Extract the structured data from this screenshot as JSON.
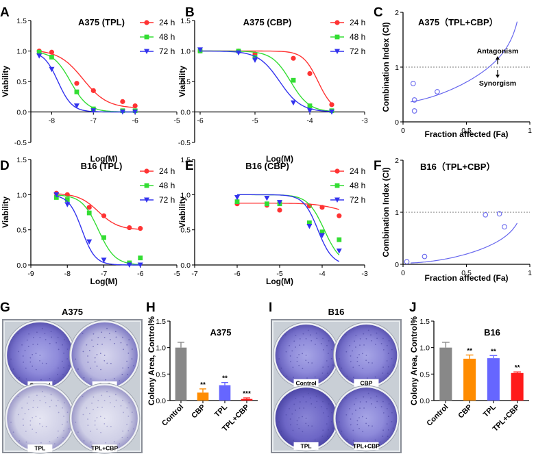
{
  "panel_labels": [
    "A",
    "B",
    "C",
    "D",
    "E",
    "F",
    "G",
    "H",
    "I",
    "J"
  ],
  "colors": {
    "h24": "#ff3333",
    "h48": "#33dd33",
    "h72": "#3333ee",
    "ci": "#6666ee",
    "control": "#888888",
    "cbp": "#ff8c00",
    "tpl": "#6666ff",
    "combo": "#ff1a1a"
  },
  "chart_data": [
    {
      "id": "A",
      "type": "line",
      "title": "A375 (TPL)",
      "xlabel": "Log(M)",
      "ylabel": "Viability",
      "xlim": [
        -8.5,
        -5
      ],
      "ylim": [
        -0.5,
        1.5
      ],
      "xticks": [
        "-8",
        "-7",
        "-6",
        "-5"
      ],
      "yticks": [
        "-0.5",
        "0.0",
        "0.5",
        "1.0",
        "1.5"
      ],
      "series": [
        {
          "name": "24 h",
          "marker": "circle",
          "x": [
            -8.3,
            -8.0,
            -7.4,
            -7.0,
            -6.3,
            -6.0
          ],
          "y": [
            1.0,
            0.98,
            0.47,
            0.35,
            0.17,
            0.1
          ],
          "fit": [
            -7.2,
            0.95
          ]
        },
        {
          "name": "48 h",
          "marker": "square",
          "x": [
            -8.3,
            -8.0,
            -7.4,
            -7.0,
            -6.3,
            -6.0
          ],
          "y": [
            0.98,
            0.9,
            0.33,
            0.05,
            0.02,
            0.02
          ],
          "fit": [
            -7.55,
            1.3
          ]
        },
        {
          "name": "72 h",
          "marker": "triangle",
          "x": [
            -8.3,
            -8.0,
            -7.4,
            -7.0,
            -6.3,
            -6.0
          ],
          "y": [
            0.92,
            0.7,
            0.1,
            0.02,
            0.0,
            0.0
          ],
          "fit": [
            -7.85,
            1.6
          ]
        }
      ]
    },
    {
      "id": "B",
      "type": "line",
      "title": "A375 (CBP)",
      "xlabel": "Log(M)",
      "ylabel": "Viability",
      "xlim": [
        -6.1,
        -3
      ],
      "ylim": [
        -0.5,
        1.5
      ],
      "xticks": [
        "-6",
        "-5",
        "-4",
        "-3"
      ],
      "yticks": [
        "-0.5",
        "0.0",
        "0.5",
        "1.0",
        "1.5"
      ],
      "series": [
        {
          "name": "24 h",
          "marker": "circle",
          "x": [
            -6.0,
            -5.3,
            -5.0,
            -4.3,
            -4.0,
            -3.6
          ],
          "y": [
            1.0,
            1.0,
            0.95,
            0.88,
            0.63,
            0.12
          ],
          "fit": [
            -3.85,
            2.0
          ]
        },
        {
          "name": "48 h",
          "marker": "square",
          "x": [
            -6.0,
            -5.3,
            -5.0,
            -4.3,
            -4.0,
            -3.6
          ],
          "y": [
            1.0,
            1.0,
            0.9,
            0.52,
            0.1,
            0.02
          ],
          "fit": [
            -4.35,
            1.6
          ]
        },
        {
          "name": "72 h",
          "marker": "triangle",
          "x": [
            -6.0,
            -5.3,
            -5.0,
            -4.3,
            -4.0,
            -3.6
          ],
          "y": [
            1.02,
            0.97,
            0.85,
            0.15,
            0.02,
            0.0
          ],
          "fit": [
            -4.55,
            1.4
          ]
        }
      ]
    },
    {
      "id": "C",
      "type": "scatter",
      "title": "A375（TPL+CBP）",
      "xlabel": "Fraction affected (Fa)",
      "ylabel": "Combination Index (CI)",
      "xlim": [
        0,
        1
      ],
      "ylim": [
        0,
        2
      ],
      "xticks": [
        "0",
        "0.5",
        "1"
      ],
      "yticks": [
        "0",
        "1",
        "2"
      ],
      "points": {
        "x": [
          0.08,
          0.09,
          0.09,
          0.27
        ],
        "y": [
          0.7,
          0.4,
          0.2,
          0.55
        ]
      },
      "reference_line": 1,
      "annotations": [
        "Antagonism",
        "Synorgism"
      ]
    },
    {
      "id": "D",
      "type": "line",
      "title": "B16 (TPL)",
      "xlabel": "Log(M)",
      "ylabel": "Viability",
      "xlim": [
        -9,
        -5
      ],
      "ylim": [
        0,
        1.5
      ],
      "xticks": [
        "-9",
        "-8",
        "-7",
        "-6",
        "-5"
      ],
      "yticks": [
        "0.0",
        "0.5",
        "1.0",
        "1.5"
      ],
      "series": [
        {
          "name": "24 h",
          "marker": "circle",
          "x": [
            -8.3,
            -8.0,
            -7.4,
            -7.0,
            -6.3,
            -6.0
          ],
          "y": [
            1.02,
            1.0,
            0.82,
            0.7,
            0.53,
            0.52
          ],
          "fit": [
            -7.2,
            1.0
          ]
        },
        {
          "name": "48 h",
          "marker": "square",
          "x": [
            -8.3,
            -8.0,
            -7.4,
            -7.0,
            -6.3,
            -6.0
          ],
          "y": [
            0.96,
            0.93,
            0.74,
            0.39,
            0.03,
            0.1
          ],
          "fit": [
            -7.15,
            1.2
          ]
        },
        {
          "name": "72 h",
          "marker": "triangle",
          "x": [
            -8.3,
            -8.0,
            -7.4,
            -7.0,
            -6.3,
            -6.0
          ],
          "y": [
            1.0,
            0.86,
            0.33,
            0.07,
            0.0,
            0.0
          ],
          "fit": [
            -7.6,
            1.5
          ]
        }
      ]
    },
    {
      "id": "E",
      "type": "line",
      "title": "B16 (CBP)",
      "xlabel": "Log(M)",
      "ylabel": "Viability",
      "xlim": [
        -7,
        -3
      ],
      "ylim": [
        0,
        1.5
      ],
      "xticks": [
        "-7",
        "-6",
        "-5",
        "-4",
        "-3"
      ],
      "yticks": [
        "0.0",
        "0.5",
        "1.0",
        "1.5"
      ],
      "series": [
        {
          "name": "24 h",
          "marker": "circle",
          "x": [
            -6.0,
            -5.3,
            -5.0,
            -4.3,
            -4.0,
            -3.6
          ],
          "y": [
            0.87,
            0.85,
            0.78,
            0.84,
            0.82,
            0.7
          ],
          "fit": [
            -3.3,
            1.5
          ]
        },
        {
          "name": "48 h",
          "marker": "square",
          "x": [
            -6.0,
            -5.3,
            -5.0,
            -4.3,
            -4.0,
            -3.6
          ],
          "y": [
            0.9,
            0.87,
            0.87,
            0.6,
            0.47,
            0.36
          ],
          "fit": [
            -3.95,
            1.4
          ]
        },
        {
          "name": "72 h",
          "marker": "triangle",
          "x": [
            -6.0,
            -5.3,
            -5.0,
            -4.3,
            -4.0,
            -3.6
          ],
          "y": [
            0.96,
            0.95,
            0.89,
            0.55,
            0.42,
            0.2
          ],
          "fit": [
            -4.1,
            1.6
          ]
        }
      ]
    },
    {
      "id": "F",
      "type": "scatter",
      "title": "B16（TPL+CBP）",
      "xlabel": "Fraction affected (Fa)",
      "ylabel": "Combination Index (CI)",
      "xlim": [
        0,
        1
      ],
      "ylim": [
        0,
        2
      ],
      "xticks": [
        "0",
        "0.5",
        "1"
      ],
      "yticks": [
        "0",
        "1",
        "2"
      ],
      "points": {
        "x": [
          0.03,
          0.17,
          0.65,
          0.76,
          0.8
        ],
        "y": [
          0.05,
          0.15,
          0.95,
          0.97,
          0.72
        ]
      },
      "reference_line": 1
    },
    {
      "id": "H",
      "type": "bar",
      "title": "A375",
      "ylabel": "Colony Area, Control%",
      "categories": [
        "Control",
        "CBP",
        "TPL",
        "TPL+CBP"
      ],
      "values": [
        1.0,
        0.15,
        0.29,
        0.03
      ],
      "errors": [
        0.1,
        0.07,
        0.05,
        0.02
      ],
      "significance": [
        "",
        "**",
        "**",
        "***"
      ],
      "ylim": [
        0,
        1.5
      ],
      "yticks": [
        "0.0",
        "0.5",
        "1.0",
        "1.5"
      ]
    },
    {
      "id": "J",
      "type": "bar",
      "title": "B16",
      "ylabel": "Colony Area, Control%",
      "categories": [
        "Control",
        "CBP",
        "TPL",
        "TPL+CBP"
      ],
      "values": [
        1.0,
        0.79,
        0.8,
        0.52
      ],
      "errors": [
        0.1,
        0.07,
        0.05,
        0.02
      ],
      "significance": [
        "",
        "**",
        "**",
        "**"
      ],
      "ylim": [
        0,
        1.5
      ],
      "yticks": [
        "0.0",
        "0.5",
        "1.0",
        "1.5"
      ]
    }
  ],
  "plates": [
    {
      "id": "G",
      "title": "A375",
      "wells": [
        "Control",
        "CBP",
        "TPL",
        "TPL+CBP"
      ]
    },
    {
      "id": "I",
      "title": "B16",
      "wells": [
        "Control",
        "CBP",
        "TPL",
        "TPL+CBP"
      ]
    }
  ]
}
